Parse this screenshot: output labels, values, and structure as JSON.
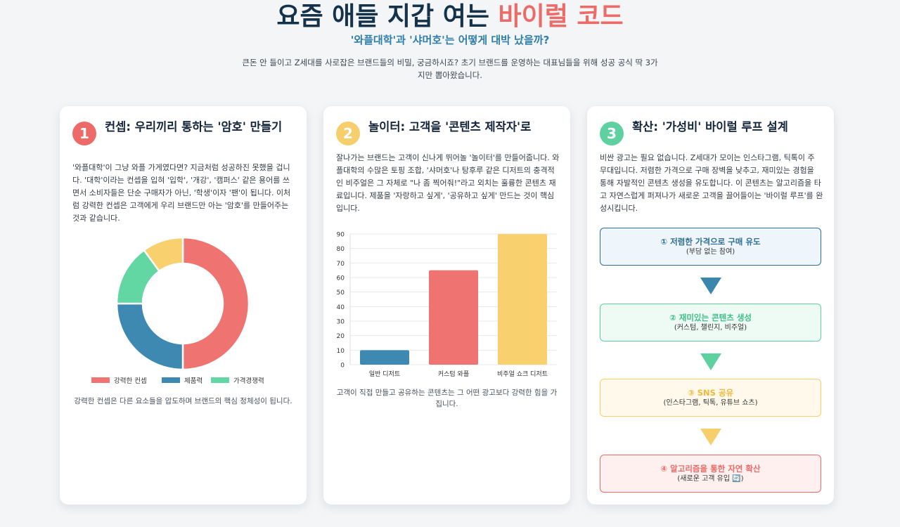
{
  "header": {
    "title_main": "요즘 애들 지갑 여는 ",
    "title_accent": "바이럴 코드",
    "subtitle": "'와플대학'과 '샤머호'는 어떻게 대박 났을까?",
    "intro": "큰돈 안 들이고 Z세대를 사로잡은 브랜드들의 비밀, 궁금하시죠? 초기 브랜드를 운영하는 대표님들을 위해 성공 공식 딱 3가지만 뽑아왔습니다."
  },
  "cards": [
    {
      "number": "1",
      "color": "#ec6b69",
      "title": "컨셉: 우리끼리 통하는 '암호' 만들기",
      "body": "'와플대학'이 그냥 와플 가게였다면? 지금처럼 성공하진 못했을 겁니다. '대학'이라는 컨셉을 입혀 '입학', '개강', '캠퍼스' 같은 용어를 쓰면서 소비자들은 단순 구매자가 아닌, '학생'이자 '팬'이 됩니다. 이처럼 강력한 컨셉은 고객에게 우리 브랜드만 아는 '암호'를 만들어주는 것과 같습니다.",
      "caption": "강력한 컨셉은 다른 요소들을 압도하며 브랜드의 핵심 정체성이 됩니다."
    },
    {
      "number": "2",
      "color": "#f6cf6c",
      "title": "놀이터: 고객을 '콘텐츠 제작자'로",
      "body": "잘나가는 브랜드는 고객이 신나게 뛰어놀 '놀이터'를 만들어줍니다. 와플대학의 수많은 토핑 조합, '샤머호'나 탕후루 같은 디저트의 충격적인 비주얼은 그 자체로 \"나 좀 찍어줘!\"라고 외치는 훌륭한 콘텐츠 재료입니다. 제품을 '자랑하고 싶게', '공유하고 싶게' 만드는 것이 핵심입니다.",
      "caption": "고객이 직접 만들고 공유하는 콘텐츠는 그 어떤 광고보다 강력한 힘을 가집니다."
    },
    {
      "number": "3",
      "color": "#5fd1a0",
      "title": "확산: '가성비' 바이럴 루프 설계",
      "body": "비싼 광고는 필요 없습니다. Z세대가 모이는 인스타그램, 틱톡이 주 무대입니다. 저렴한 가격으로 구매 장벽을 낮추고, 재미있는 경험을 통해 자발적인 콘텐츠 생성을 유도합니다. 이 콘텐츠는 알고리즘을 타고 자연스럽게 퍼져나가 새로운 고객을 끌어들이는 '바이럴 루프'를 완성시킵니다."
    }
  ],
  "flow": [
    {
      "title": "① 저렴한 가격으로 구매 유도",
      "sub": "(부담 없는 참여)",
      "border": "#2f6f92",
      "bg": "#eef5fb",
      "text": "#2f6f92"
    },
    {
      "title": "② 재미있는 콘텐츠 생성",
      "sub": "(커스텀, 챌린지, 비주얼)",
      "border": "#5fd1a0",
      "bg": "#eefaf4",
      "text": "#3fbf88"
    },
    {
      "title": "③ SNS 공유",
      "sub": "(인스타그램, 틱톡, 유튜브 쇼츠)",
      "border": "#f6cf6c",
      "bg": "#fef9ea",
      "text": "#f0b93d"
    },
    {
      "title": "④ 알고리즘을 통한 자연 확산",
      "sub": "(새로운 고객 유입 🔄)",
      "border": "#ec6b69",
      "bg": "#fdf0ef",
      "text": "#ec6b69"
    }
  ],
  "arrow_colors": [
    "#3b86ad",
    "#5fd1a0",
    "#f6cf6c"
  ],
  "chart_data": [
    {
      "type": "pie",
      "categories": [
        "강력한 컨셉",
        "제품력",
        "가격경쟁력",
        ""
      ],
      "values": [
        50,
        25,
        15,
        10
      ],
      "colors": [
        "#ef7370",
        "#3d89b1",
        "#62d6a3",
        "#f8d06d"
      ],
      "legend_position": "bottom"
    },
    {
      "type": "bar",
      "categories": [
        "일반 디저트",
        "커스텀 와플",
        "비주얼 쇼크 디저트"
      ],
      "values": [
        10,
        65,
        90
      ],
      "colors": [
        "#3d89b1",
        "#ef7370",
        "#f8d06d"
      ],
      "ylim": [
        0,
        90
      ],
      "yticks": [
        0,
        10,
        20,
        30,
        40,
        50,
        60,
        70,
        80,
        90
      ],
      "grid": true
    }
  ]
}
